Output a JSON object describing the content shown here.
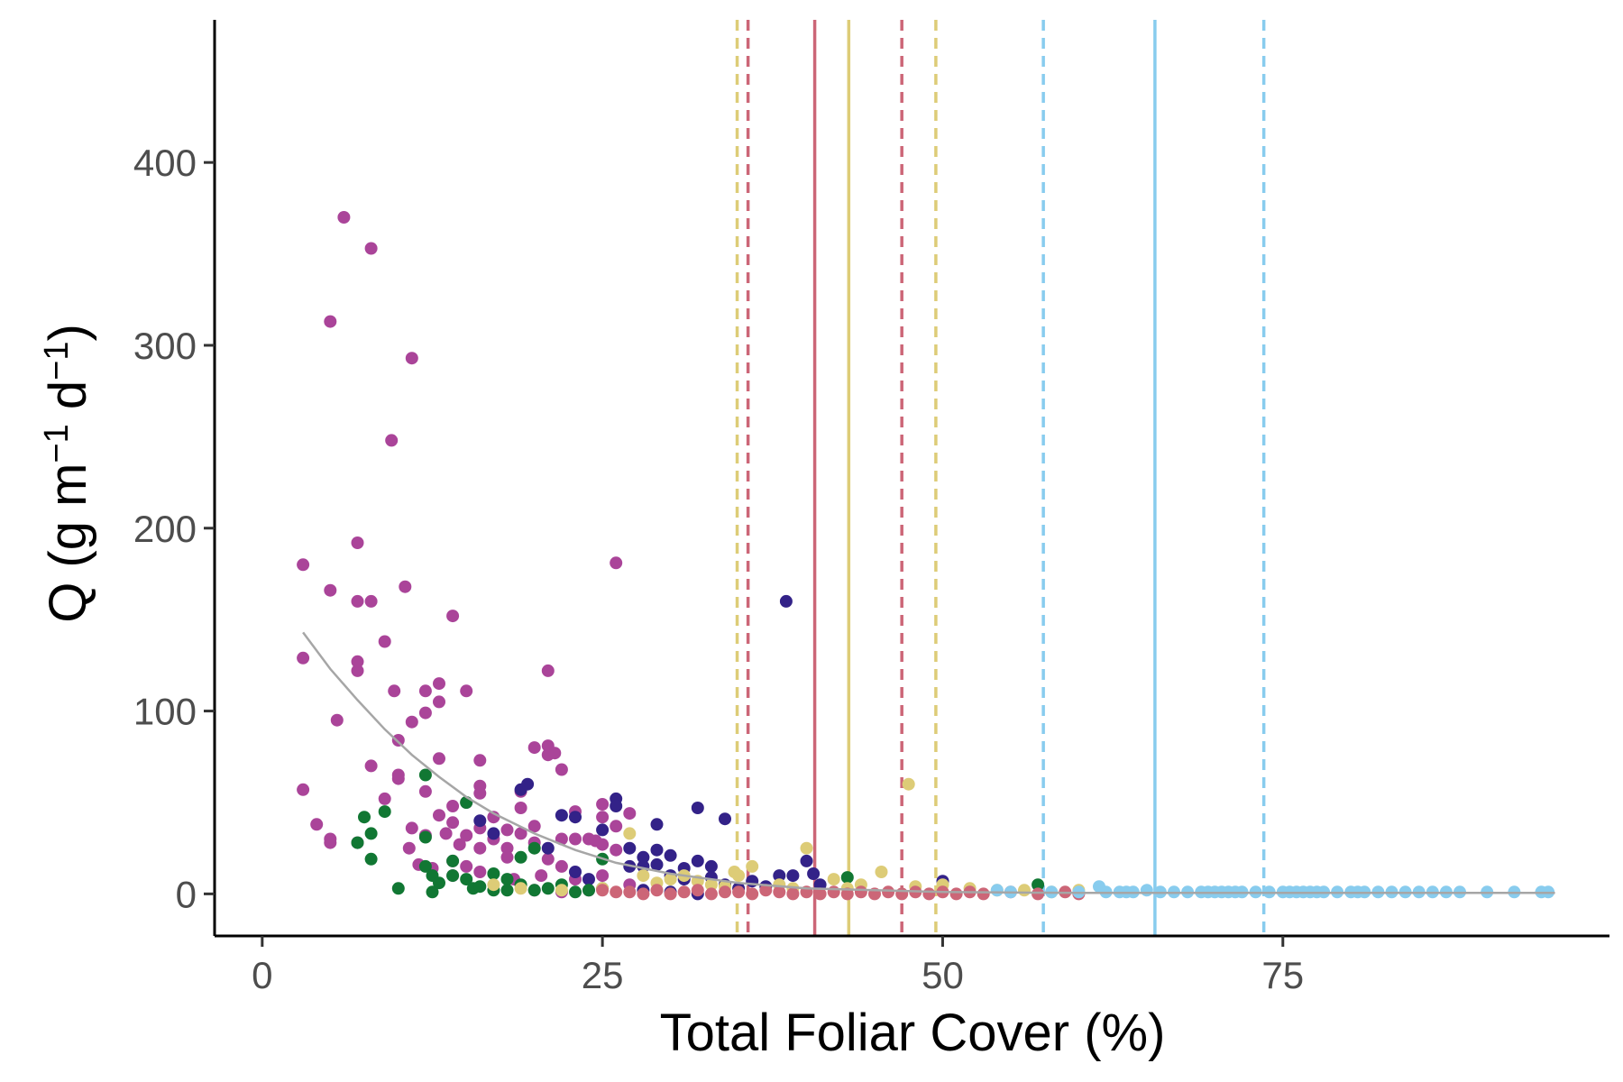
{
  "chart_data": {
    "type": "scatter",
    "xlabel": "Total Foliar Cover (%)",
    "ylabel": {
      "base": "Q (g m",
      "sup1": "−1",
      "mid": " d",
      "sup2": "−1",
      "end": ")"
    },
    "xlim": [
      -3.5,
      99
    ],
    "ylim": [
      -23,
      478
    ],
    "xticks": [
      0,
      25,
      50,
      75
    ],
    "yticks": [
      0,
      100,
      200,
      300,
      400
    ],
    "grid": false,
    "legend": "none",
    "colors": {
      "magenta": "#aa4499",
      "indigo": "#332288",
      "green": "#117733",
      "sand": "#ddcc77",
      "rose": "#cc6677",
      "sky": "#88ccee",
      "fit": "#a6a6a6"
    },
    "reference_lines": [
      {
        "x": 34.9,
        "color": "#ddcc77",
        "style": "dashed"
      },
      {
        "x": 35.7,
        "color": "#cc6677",
        "style": "dashed"
      },
      {
        "x": 40.6,
        "color": "#cc6677",
        "style": "solid"
      },
      {
        "x": 43.1,
        "color": "#ddcc77",
        "style": "solid"
      },
      {
        "x": 47.0,
        "color": "#cc6677",
        "style": "dashed"
      },
      {
        "x": 49.5,
        "color": "#ddcc77",
        "style": "dashed"
      },
      {
        "x": 57.4,
        "color": "#88ccee",
        "style": "dashed"
      },
      {
        "x": 65.6,
        "color": "#88ccee",
        "style": "solid"
      },
      {
        "x": 73.6,
        "color": "#88ccee",
        "style": "dashed"
      }
    ],
    "fit_line": {
      "color": "#a6a6a6",
      "x": [
        3,
        5,
        7,
        9,
        11,
        13,
        15,
        17,
        20,
        23,
        26,
        30,
        35,
        40,
        50,
        60,
        70,
        80,
        95
      ],
      "y": [
        143,
        123,
        106,
        90,
        76,
        64,
        53,
        44,
        33,
        24,
        17,
        11,
        6,
        3,
        1,
        0.5,
        0.5,
        0.5,
        0.5
      ]
    },
    "series": [
      {
        "color": "#aa4499",
        "points": [
          [
            3,
            180
          ],
          [
            3,
            129
          ],
          [
            3,
            57
          ],
          [
            4,
            38
          ],
          [
            5,
            313
          ],
          [
            5,
            166
          ],
          [
            5,
            30
          ],
          [
            5,
            28
          ],
          [
            5.5,
            95
          ],
          [
            6,
            370
          ],
          [
            7,
            160
          ],
          [
            7,
            192
          ],
          [
            7,
            127
          ],
          [
            7,
            122
          ],
          [
            7,
            28
          ],
          [
            8,
            353
          ],
          [
            8,
            160
          ],
          [
            8,
            70
          ],
          [
            9,
            138
          ],
          [
            9,
            52
          ],
          [
            9.5,
            248
          ],
          [
            9.7,
            111
          ],
          [
            10,
            84
          ],
          [
            10,
            65
          ],
          [
            10,
            63
          ],
          [
            10.5,
            168
          ],
          [
            10.8,
            25
          ],
          [
            11,
            293
          ],
          [
            11,
            94
          ],
          [
            11,
            36
          ],
          [
            11.5,
            16
          ],
          [
            12,
            111
          ],
          [
            12,
            99
          ],
          [
            12,
            56
          ],
          [
            12,
            32
          ],
          [
            12.5,
            14
          ],
          [
            13,
            115
          ],
          [
            13,
            105
          ],
          [
            13,
            74
          ],
          [
            13,
            43
          ],
          [
            13.5,
            33
          ],
          [
            14,
            152
          ],
          [
            14,
            48
          ],
          [
            14,
            39
          ],
          [
            14,
            18
          ],
          [
            14,
            10
          ],
          [
            14.5,
            27
          ],
          [
            15,
            111
          ],
          [
            15,
            50
          ],
          [
            15,
            32
          ],
          [
            15,
            15
          ],
          [
            16,
            73
          ],
          [
            16,
            59
          ],
          [
            16,
            55
          ],
          [
            16,
            36
          ],
          [
            16,
            25
          ],
          [
            16,
            12
          ],
          [
            17,
            42
          ],
          [
            17,
            30
          ],
          [
            18,
            35
          ],
          [
            18,
            25
          ],
          [
            18,
            20
          ],
          [
            18.5,
            8
          ],
          [
            19,
            56
          ],
          [
            19,
            47
          ],
          [
            19,
            33
          ],
          [
            20,
            80
          ],
          [
            20,
            37
          ],
          [
            20,
            28
          ],
          [
            20.5,
            10
          ],
          [
            21,
            81
          ],
          [
            21,
            76
          ],
          [
            21,
            122
          ],
          [
            21,
            19
          ],
          [
            21.5,
            77
          ],
          [
            22,
            68
          ],
          [
            22,
            30
          ],
          [
            22,
            15
          ],
          [
            23,
            45
          ],
          [
            23,
            30
          ],
          [
            23,
            8
          ],
          [
            24,
            30
          ],
          [
            24.5,
            29
          ],
          [
            25,
            49
          ],
          [
            25,
            42
          ],
          [
            25,
            27
          ],
          [
            25,
            10
          ],
          [
            26,
            181
          ],
          [
            26,
            37
          ],
          [
            26,
            24
          ],
          [
            27,
            44
          ],
          [
            27,
            5
          ],
          [
            20,
            2
          ],
          [
            22,
            1
          ],
          [
            24,
            2
          ]
        ]
      },
      {
        "color": "#332288",
        "points": [
          [
            16,
            40
          ],
          [
            17,
            33
          ],
          [
            19,
            57
          ],
          [
            19.5,
            60
          ],
          [
            21,
            25
          ],
          [
            22,
            43
          ],
          [
            23,
            42
          ],
          [
            23,
            12
          ],
          [
            24,
            8
          ],
          [
            25,
            35
          ],
          [
            26,
            52
          ],
          [
            26,
            48
          ],
          [
            27,
            25
          ],
          [
            27,
            15
          ],
          [
            28,
            20
          ],
          [
            28,
            15
          ],
          [
            29,
            38
          ],
          [
            29,
            24
          ],
          [
            29,
            16
          ],
          [
            30,
            21
          ],
          [
            30,
            10
          ],
          [
            31,
            14
          ],
          [
            31,
            8
          ],
          [
            32,
            47
          ],
          [
            32,
            18
          ],
          [
            33,
            15
          ],
          [
            33,
            9
          ],
          [
            34,
            41
          ],
          [
            34,
            5
          ],
          [
            35,
            3
          ],
          [
            36,
            7
          ],
          [
            37,
            4
          ],
          [
            38,
            10
          ],
          [
            38.5,
            160
          ],
          [
            39,
            10
          ],
          [
            40,
            18
          ],
          [
            40.5,
            11
          ],
          [
            41,
            5
          ],
          [
            50,
            7
          ],
          [
            28,
            2
          ],
          [
            30,
            1
          ],
          [
            32,
            0
          ]
        ]
      },
      {
        "color": "#117733",
        "points": [
          [
            7,
            28
          ],
          [
            7.5,
            42
          ],
          [
            8,
            33
          ],
          [
            8,
            19
          ],
          [
            9,
            45
          ],
          [
            10,
            3
          ],
          [
            12,
            65
          ],
          [
            12,
            31
          ],
          [
            12,
            15
          ],
          [
            12.5,
            10
          ],
          [
            12.5,
            1
          ],
          [
            13,
            6
          ],
          [
            14,
            18
          ],
          [
            14,
            10
          ],
          [
            15,
            50
          ],
          [
            15,
            8
          ],
          [
            15.5,
            3
          ],
          [
            16,
            4
          ],
          [
            17,
            11
          ],
          [
            17,
            2
          ],
          [
            18,
            8
          ],
          [
            18,
            2
          ],
          [
            19,
            20
          ],
          [
            19,
            5
          ],
          [
            20,
            2
          ],
          [
            20,
            25
          ],
          [
            21,
            3
          ],
          [
            22,
            5
          ],
          [
            23,
            1
          ],
          [
            24,
            2
          ],
          [
            25,
            19
          ],
          [
            25,
            3
          ],
          [
            43,
            9
          ],
          [
            57,
            5
          ]
        ]
      },
      {
        "color": "#ddcc77",
        "points": [
          [
            17,
            5
          ],
          [
            19,
            3
          ],
          [
            22,
            2
          ],
          [
            25,
            3
          ],
          [
            27,
            33
          ],
          [
            28,
            10
          ],
          [
            29,
            6
          ],
          [
            30,
            8
          ],
          [
            31,
            10
          ],
          [
            32,
            7
          ],
          [
            33,
            5
          ],
          [
            34,
            4
          ],
          [
            34.7,
            12
          ],
          [
            35,
            10
          ],
          [
            36,
            15
          ],
          [
            38,
            5
          ],
          [
            39,
            3
          ],
          [
            40,
            25
          ],
          [
            42,
            8
          ],
          [
            43,
            3
          ],
          [
            44,
            5
          ],
          [
            45.5,
            12
          ],
          [
            47.5,
            60
          ],
          [
            48,
            4
          ],
          [
            50,
            5
          ],
          [
            52,
            3
          ],
          [
            54,
            2
          ],
          [
            56,
            2
          ],
          [
            58,
            1
          ],
          [
            60,
            2
          ]
        ]
      },
      {
        "color": "#cc6677",
        "points": [
          [
            25,
            2
          ],
          [
            26,
            1
          ],
          [
            27,
            1
          ],
          [
            28,
            0
          ],
          [
            29,
            2
          ],
          [
            30,
            0
          ],
          [
            31,
            1
          ],
          [
            32,
            2
          ],
          [
            33,
            0
          ],
          [
            34,
            1
          ],
          [
            35,
            1
          ],
          [
            36,
            0
          ],
          [
            37,
            2
          ],
          [
            38,
            1
          ],
          [
            39,
            0
          ],
          [
            40,
            1
          ],
          [
            41,
            0
          ],
          [
            42,
            1
          ],
          [
            43,
            0
          ],
          [
            44,
            1
          ],
          [
            45,
            0
          ],
          [
            46,
            1
          ],
          [
            47,
            0
          ],
          [
            48,
            1
          ],
          [
            49,
            0
          ],
          [
            50,
            1
          ],
          [
            51,
            0
          ],
          [
            52,
            1
          ],
          [
            53,
            0
          ],
          [
            55,
            1
          ],
          [
            57,
            0
          ],
          [
            59,
            1
          ],
          [
            60,
            0
          ]
        ]
      },
      {
        "color": "#88ccee",
        "points": [
          [
            54,
            2
          ],
          [
            55,
            1
          ],
          [
            58,
            1
          ],
          [
            60,
            1
          ],
          [
            61.5,
            4
          ],
          [
            62,
            1
          ],
          [
            63,
            1
          ],
          [
            63.5,
            1
          ],
          [
            64,
            1
          ],
          [
            65,
            2
          ],
          [
            66,
            1
          ],
          [
            67,
            1
          ],
          [
            68,
            1
          ],
          [
            69,
            1
          ],
          [
            69.5,
            1
          ],
          [
            70,
            1
          ],
          [
            70.5,
            1
          ],
          [
            71,
            1
          ],
          [
            71.5,
            1
          ],
          [
            72,
            1
          ],
          [
            73,
            1
          ],
          [
            74,
            1
          ],
          [
            75,
            1
          ],
          [
            75.5,
            1
          ],
          [
            76,
            1
          ],
          [
            76.5,
            1
          ],
          [
            77,
            1
          ],
          [
            77.5,
            1
          ],
          [
            78,
            1
          ],
          [
            79,
            1
          ],
          [
            80,
            1
          ],
          [
            80.5,
            1
          ],
          [
            81,
            1
          ],
          [
            82,
            1
          ],
          [
            83,
            1
          ],
          [
            84,
            1
          ],
          [
            85,
            1
          ],
          [
            86,
            1
          ],
          [
            87,
            1
          ],
          [
            88,
            1
          ],
          [
            90,
            1
          ],
          [
            92,
            1
          ],
          [
            94,
            1
          ],
          [
            94.5,
            1
          ]
        ]
      }
    ]
  }
}
